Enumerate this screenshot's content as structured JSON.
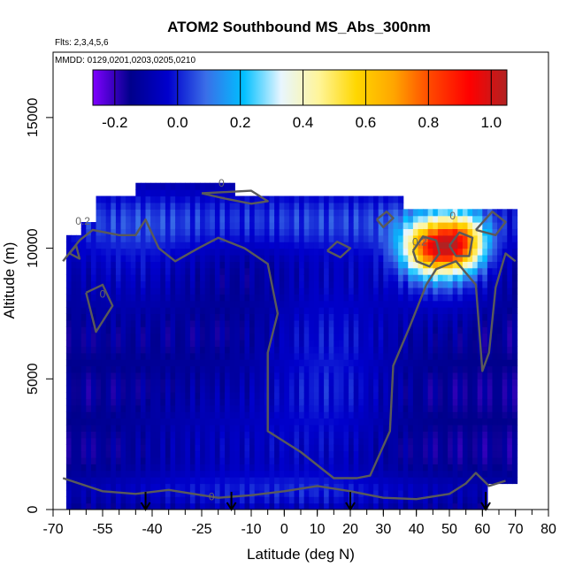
{
  "chart_data": {
    "type": "heatmap",
    "title": "ATOM2 Southbound MS_Abs_300nm",
    "annotations": [
      "Flts: 2,3,4,5,6",
      "MMDD: 0129,0201,0203,0205,0210"
    ],
    "xlabel": "Latitude (deg N)",
    "ylabel": "Altitude (m)",
    "xlim": [
      -70,
      80
    ],
    "ylim": [
      0,
      17500
    ],
    "x_ticks": [
      -70,
      -55,
      -40,
      -25,
      -10,
      0,
      10,
      20,
      30,
      40,
      50,
      60,
      70,
      80
    ],
    "y_ticks": [
      0,
      5000,
      10000,
      15000
    ],
    "grid": false,
    "colorbar": {
      "placement": "top-inset",
      "range": [
        -0.27,
        1.05
      ],
      "ticks": [
        -0.2,
        0.0,
        0.2,
        0.4,
        0.6,
        0.8,
        1.0
      ],
      "tick_labels": [
        "-0.2",
        "0.0",
        "0.2",
        "0.4",
        "0.6",
        "0.8",
        "1.0"
      ],
      "colors": [
        "#7f00ff",
        "#00008b",
        "#0000cd",
        "#3a6ee8",
        "#00bfff",
        "#e8f6ff",
        "#fff59a",
        "#ffd700",
        "#ffa500",
        "#ff4500",
        "#ff0000",
        "#b22222"
      ]
    },
    "contour_labels": [
      {
        "x": -61,
        "y": 10900,
        "text": "0.2"
      },
      {
        "x": -19,
        "y": 12350,
        "text": "0"
      },
      {
        "x": -55,
        "y": 8100,
        "text": "0"
      },
      {
        "x": 41,
        "y": 10100,
        "text": "0.2"
      },
      {
        "x": 51,
        "y": 11100,
        "text": "0"
      },
      {
        "x": -22,
        "y": 350,
        "text": "0"
      }
    ],
    "flight_arrows_lat": [
      -42,
      -16,
      20,
      61
    ]
  }
}
